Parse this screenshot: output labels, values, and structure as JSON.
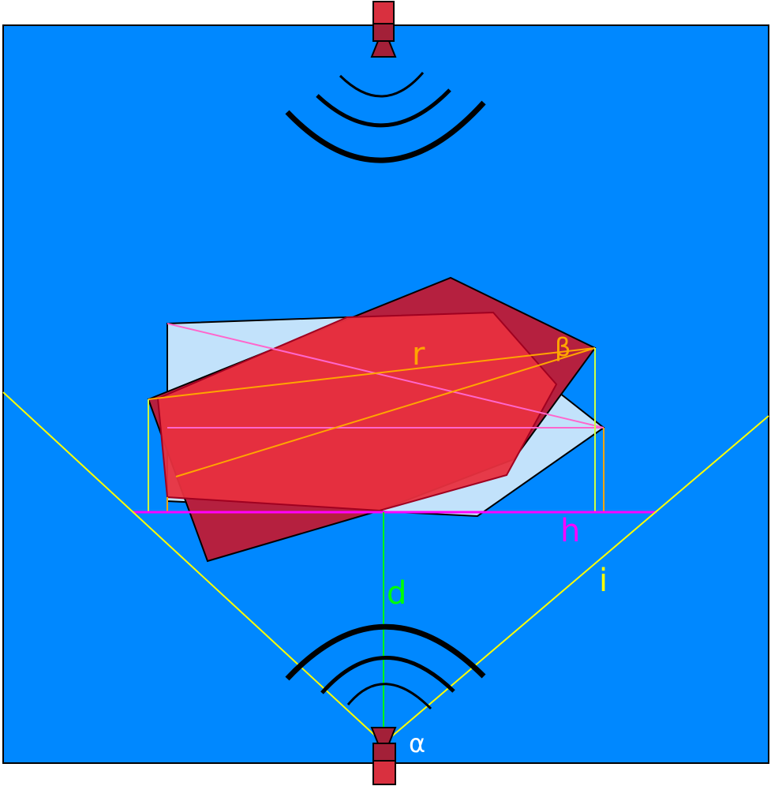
{
  "labels": {
    "r": "r",
    "beta": "β",
    "h": "h",
    "d": "d",
    "i": "i",
    "alpha": "α"
  },
  "colors": {
    "background": "#0088ff",
    "r_line": "#ffa500",
    "beta_label": "#ffa500",
    "h_line": "#ff00ff",
    "d_line": "#00ff00",
    "i_line": "#ffff00",
    "alpha_label": "#ffffff",
    "light_shape": "#c2e2fb",
    "red_shape": "#e8303f",
    "dark_red_shape": "#b5203f",
    "sensor_body": "#d9303f",
    "sensor_dark": "#a32038",
    "pink_line": "#ff66cc",
    "wave": "#000000"
  },
  "icons": {
    "top_sensor": "transducer-icon",
    "bottom_sensor": "transducer-icon",
    "top_waves": "sound-wave-icon",
    "bottom_waves": "sound-wave-icon"
  }
}
